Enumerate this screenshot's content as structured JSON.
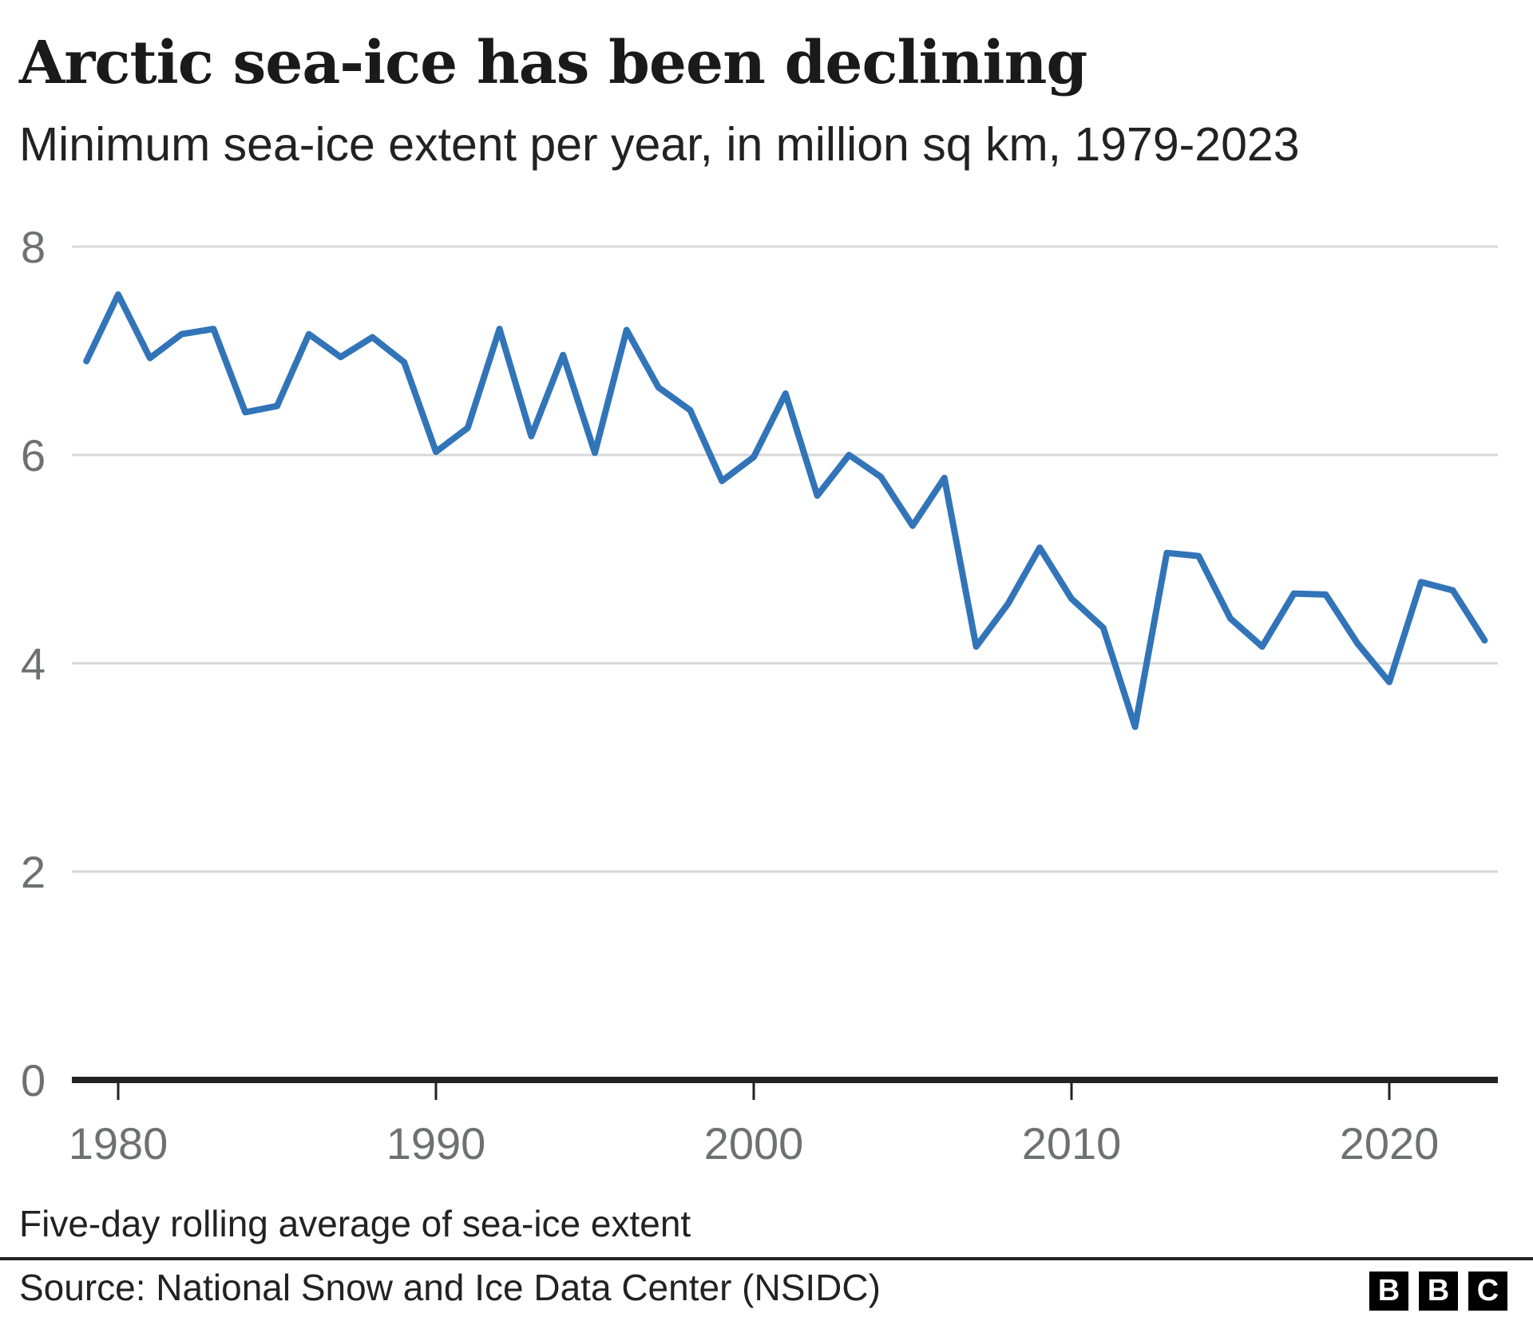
{
  "header": {
    "title": "Arctic sea-ice has been declining",
    "subtitle": "Minimum sea-ice extent per year, in million sq km, 1979-2023"
  },
  "chart_data": {
    "type": "line",
    "title": "Arctic sea-ice has been declining",
    "subtitle": "Minimum sea-ice extent per year, in million sq km, 1979-2023",
    "x": [
      1979,
      1980,
      1981,
      1982,
      1983,
      1984,
      1985,
      1986,
      1987,
      1988,
      1989,
      1990,
      1991,
      1992,
      1993,
      1994,
      1995,
      1996,
      1997,
      1998,
      1999,
      2000,
      2001,
      2002,
      2003,
      2004,
      2005,
      2006,
      2007,
      2008,
      2009,
      2010,
      2011,
      2012,
      2013,
      2014,
      2015,
      2016,
      2017,
      2018,
      2019,
      2020,
      2021,
      2022,
      2023
    ],
    "series": [
      {
        "name": "Minimum sea-ice extent (million sq km)",
        "values": [
          6.9,
          7.54,
          6.93,
          7.16,
          7.21,
          6.41,
          6.47,
          7.16,
          6.94,
          7.13,
          6.89,
          6.03,
          6.26,
          7.21,
          6.18,
          6.96,
          6.02,
          7.2,
          6.65,
          6.43,
          5.75,
          5.98,
          6.59,
          5.61,
          6.0,
          5.79,
          5.32,
          5.78,
          4.16,
          4.57,
          5.11,
          4.62,
          4.34,
          3.39,
          5.06,
          5.03,
          4.43,
          4.16,
          4.67,
          4.66,
          4.19,
          3.82,
          4.78,
          4.7,
          4.22
        ]
      }
    ],
    "xlabel": "",
    "ylabel": "million sq km",
    "ylim": [
      0,
      8
    ],
    "yticks": [
      0,
      2,
      4,
      6,
      8
    ],
    "ytick_labels": [
      "0",
      "2",
      "4",
      "6",
      "8"
    ],
    "xticks": [
      1980,
      1990,
      2000,
      2010,
      2020
    ],
    "xtick_labels": [
      "1980",
      "1990",
      "2000",
      "2010",
      "2020"
    ],
    "grid": "horizontal",
    "legend": "none",
    "line_color": "#3274b8"
  },
  "footer": {
    "note": "Five-day rolling average of sea-ice extent",
    "source": "Source: National Snow and Ice Data Center (NSIDC)",
    "logo_letters": [
      "B",
      "B",
      "C"
    ]
  },
  "colors": {
    "line": "#3274b8",
    "grid": "#d8d8d8",
    "axis": "#222222",
    "tick_label": "#6f7073",
    "text": "#222222",
    "background": "#ffffff"
  }
}
